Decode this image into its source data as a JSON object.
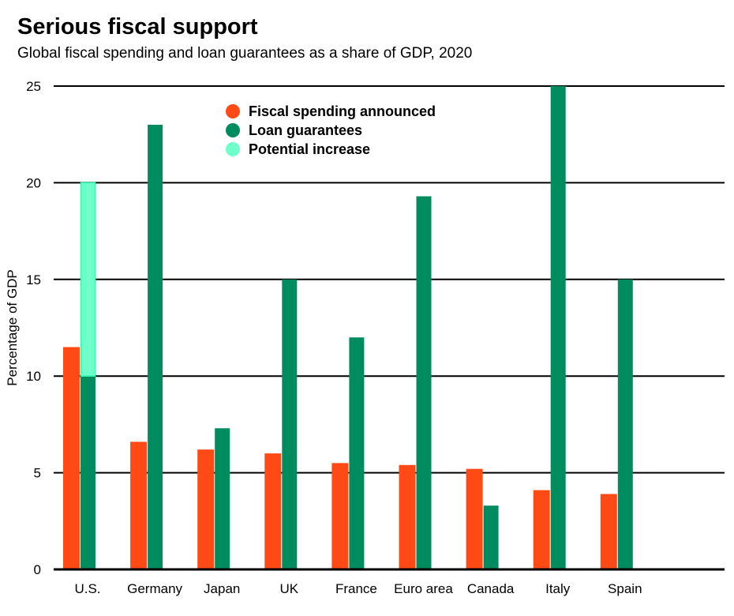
{
  "chart_data": {
    "type": "bar",
    "title": "Serious fiscal support",
    "subtitle": "Global fiscal spending and loan guarantees as a share of GDP, 2020",
    "xlabel": "",
    "ylabel": "Percentage of GDP",
    "ylim": [
      0,
      25
    ],
    "yticks": [
      0,
      5,
      10,
      15,
      20,
      25
    ],
    "grid": true,
    "legend_placement": "top-center",
    "categories": [
      "U.S.",
      "Germany",
      "Japan",
      "UK",
      "France",
      "Euro area",
      "Canada",
      "Italy",
      "Spain"
    ],
    "series": [
      {
        "name": "Fiscal spending announced",
        "color": "#ff4a16",
        "values": [
          11.5,
          6.6,
          6.2,
          6.0,
          5.5,
          5.4,
          5.2,
          4.1,
          3.9
        ]
      },
      {
        "name": "Loan guarantees",
        "color": "#008c5e",
        "values": [
          10,
          23,
          7.3,
          15,
          12,
          19.3,
          3.3,
          25,
          15
        ]
      },
      {
        "name": "Potential increase",
        "color": "#6effcb",
        "values": [
          10,
          0,
          0,
          0,
          0,
          0,
          0,
          0,
          0
        ],
        "stacked_on": "Loan guarantees"
      }
    ]
  }
}
